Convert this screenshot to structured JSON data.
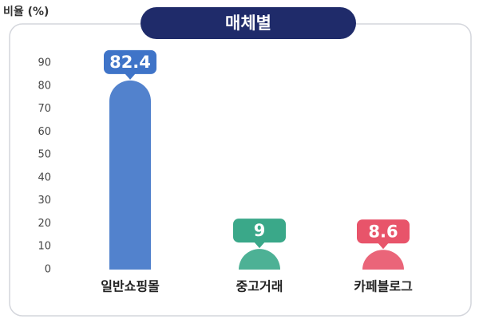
{
  "chart_data": {
    "type": "bar",
    "title": "매체별",
    "y_label": "비율 (%)",
    "categories": [
      "일반쇼핑몰",
      "중고거래",
      "카페블로그"
    ],
    "values": [
      82.4,
      9,
      8.6
    ],
    "colors": [
      "#3f74c8",
      "#3aa889",
      "#e8546a"
    ],
    "ylim": [
      0,
      90
    ],
    "yticks": [
      0,
      10,
      20,
      30,
      40,
      50,
      60,
      70,
      80,
      90
    ],
    "grid": false
  }
}
